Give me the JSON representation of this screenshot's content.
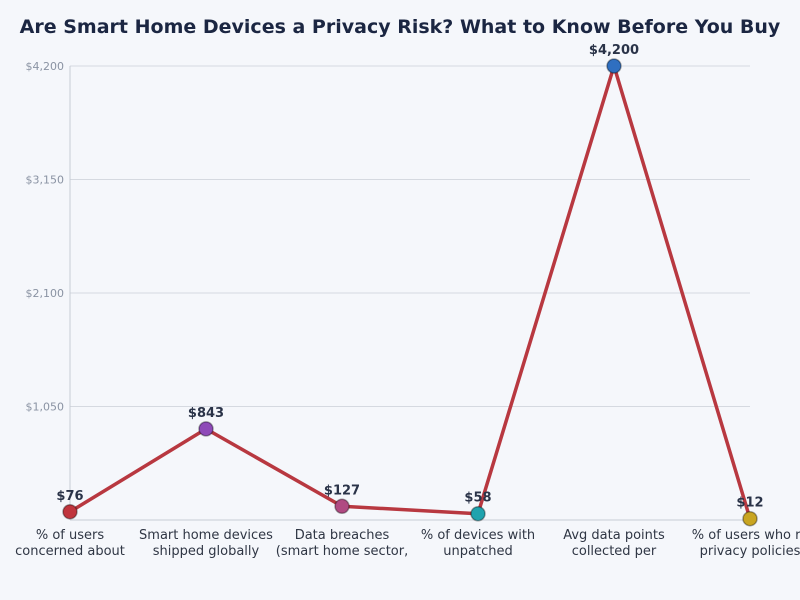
{
  "chart_data": {
    "type": "line",
    "title": "Are Smart Home Devices a Privacy Risk? What to Know Before You Buy",
    "categories": [
      [
        "% of users",
        "concerned about"
      ],
      [
        "Smart home devices",
        "shipped globally"
      ],
      [
        "Data breaches",
        "(smart home sector,"
      ],
      [
        "% of devices with",
        "unpatched"
      ],
      [
        "Avg data points",
        "collected per"
      ],
      [
        "% of users who re",
        "privacy policies"
      ]
    ],
    "values": [
      76,
      843,
      127,
      58,
      4200,
      12
    ],
    "data_labels": [
      "$76",
      "$843",
      "$127",
      "$58",
      "$4,200",
      "$12"
    ],
    "ylim": [
      0,
      4200
    ],
    "yticks": [
      1050,
      2100,
      3150,
      4200
    ],
    "ytick_labels": [
      "$1,050",
      "$2,100",
      "$3,150",
      "$4,200"
    ],
    "grid": true,
    "line_color": "#b83840",
    "point_colors": [
      "#c0353d",
      "#8e4ab8",
      "#b04a82",
      "#1fa3ae",
      "#2f6fc0",
      "#c9a521"
    ]
  }
}
